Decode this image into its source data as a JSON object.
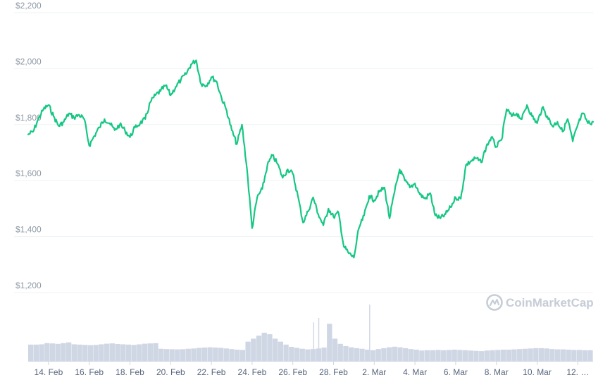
{
  "chart_data": {
    "type": "line",
    "watermark": "CoinMarketCap",
    "colors": {
      "line": "#16c784",
      "volume": "#cfd6e4",
      "grid": "#eff2f5"
    },
    "y_axis": {
      "ticks": [
        "$1,200",
        "$1,400",
        "$1,600",
        "$1,800",
        "$2,000",
        "$2,200"
      ],
      "ylim": [
        1200,
        2200
      ]
    },
    "x_axis": {
      "ticks": [
        "14. Feb",
        "16. Feb",
        "18. Feb",
        "20. Feb",
        "22. Feb",
        "24. Feb",
        "26. Feb",
        "28. Feb",
        "2. Mar",
        "4. Mar",
        "6. Mar",
        "8. Mar",
        "10. Mar",
        "12. …"
      ]
    },
    "grid": true,
    "series": [
      {
        "values": [
          [
            "2021-02-13 00:00",
            1765
          ],
          [
            "2021-02-13 06:00",
            1775
          ],
          [
            "2021-02-13 12:00",
            1820
          ],
          [
            "2021-02-13 18:00",
            1855
          ],
          [
            "2021-02-14 00:00",
            1870
          ],
          [
            "2021-02-14 06:00",
            1830
          ],
          [
            "2021-02-14 12:00",
            1795
          ],
          [
            "2021-02-14 18:00",
            1810
          ],
          [
            "2021-02-15 00:00",
            1840
          ],
          [
            "2021-02-15 06:00",
            1825
          ],
          [
            "2021-02-15 12:00",
            1835
          ],
          [
            "2021-02-15 18:00",
            1820
          ],
          [
            "2021-02-16 00:00",
            1725
          ],
          [
            "2021-02-16 06:00",
            1760
          ],
          [
            "2021-02-16 12:00",
            1790
          ],
          [
            "2021-02-16 18:00",
            1820
          ],
          [
            "2021-02-17 00:00",
            1805
          ],
          [
            "2021-02-17 06:00",
            1780
          ],
          [
            "2021-02-17 12:00",
            1800
          ],
          [
            "2021-02-17 18:00",
            1780
          ],
          [
            "2021-02-18 00:00",
            1755
          ],
          [
            "2021-02-18 06:00",
            1790
          ],
          [
            "2021-02-18 12:00",
            1805
          ],
          [
            "2021-02-18 18:00",
            1820
          ],
          [
            "2021-02-19 00:00",
            1880
          ],
          [
            "2021-02-19 06:00",
            1905
          ],
          [
            "2021-02-19 12:00",
            1920
          ],
          [
            "2021-02-19 18:00",
            1940
          ],
          [
            "2021-02-20 00:00",
            1905
          ],
          [
            "2021-02-20 06:00",
            1935
          ],
          [
            "2021-02-20 12:00",
            1960
          ],
          [
            "2021-02-20 18:00",
            1980
          ],
          [
            "2021-02-21 00:00",
            2015
          ],
          [
            "2021-02-21 06:00",
            2030
          ],
          [
            "2021-02-21 12:00",
            1945
          ],
          [
            "2021-02-21 18:00",
            1940
          ],
          [
            "2021-02-22 00:00",
            1970
          ],
          [
            "2021-02-22 06:00",
            1955
          ],
          [
            "2021-02-22 12:00",
            1895
          ],
          [
            "2021-02-22 18:00",
            1850
          ],
          [
            "2021-02-23 00:00",
            1780
          ],
          [
            "2021-02-23 06:00",
            1730
          ],
          [
            "2021-02-23 12:00",
            1800
          ],
          [
            "2021-02-23 18:00",
            1640
          ],
          [
            "2021-02-24 00:00",
            1430
          ],
          [
            "2021-02-24 06:00",
            1540
          ],
          [
            "2021-02-24 12:00",
            1570
          ],
          [
            "2021-02-24 18:00",
            1655
          ],
          [
            "2021-02-25 00:00",
            1690
          ],
          [
            "2021-02-25 06:00",
            1660
          ],
          [
            "2021-02-25 12:00",
            1610
          ],
          [
            "2021-02-25 18:00",
            1640
          ],
          [
            "2021-02-26 00:00",
            1625
          ],
          [
            "2021-02-26 06:00",
            1545
          ],
          [
            "2021-02-26 12:00",
            1450
          ],
          [
            "2021-02-26 18:00",
            1490
          ],
          [
            "2021-02-27 00:00",
            1540
          ],
          [
            "2021-02-27 06:00",
            1480
          ],
          [
            "2021-02-27 12:00",
            1440
          ],
          [
            "2021-02-27 18:00",
            1500
          ],
          [
            "2021-02-28 00:00",
            1470
          ],
          [
            "2021-02-28 06:00",
            1485
          ],
          [
            "2021-02-28 12:00",
            1365
          ],
          [
            "2021-02-28 18:00",
            1340
          ],
          [
            "2021-03-01 00:00",
            1325
          ],
          [
            "2021-03-01 06:00",
            1430
          ],
          [
            "2021-03-01 12:00",
            1475
          ],
          [
            "2021-03-01 18:00",
            1545
          ],
          [
            "2021-03-02 00:00",
            1530
          ],
          [
            "2021-03-02 06:00",
            1560
          ],
          [
            "2021-03-02 12:00",
            1575
          ],
          [
            "2021-03-02 18:00",
            1465
          ],
          [
            "2021-03-03 00:00",
            1560
          ],
          [
            "2021-03-03 06:00",
            1640
          ],
          [
            "2021-03-03 12:00",
            1600
          ],
          [
            "2021-03-03 18:00",
            1575
          ],
          [
            "2021-03-04 00:00",
            1590
          ],
          [
            "2021-03-04 06:00",
            1550
          ],
          [
            "2021-03-04 12:00",
            1535
          ],
          [
            "2021-03-04 18:00",
            1555
          ],
          [
            "2021-03-05 00:00",
            1475
          ],
          [
            "2021-03-05 06:00",
            1465
          ],
          [
            "2021-03-05 12:00",
            1480
          ],
          [
            "2021-03-05 18:00",
            1505
          ],
          [
            "2021-03-06 00:00",
            1540
          ],
          [
            "2021-03-06 06:00",
            1535
          ],
          [
            "2021-03-06 12:00",
            1655
          ],
          [
            "2021-03-06 18:00",
            1670
          ],
          [
            "2021-03-07 00:00",
            1680
          ],
          [
            "2021-03-07 06:00",
            1665
          ],
          [
            "2021-03-07 12:00",
            1720
          ],
          [
            "2021-03-07 18:00",
            1755
          ],
          [
            "2021-03-08 00:00",
            1720
          ],
          [
            "2021-03-08 06:00",
            1745
          ],
          [
            "2021-03-08 12:00",
            1855
          ],
          [
            "2021-03-08 18:00",
            1830
          ],
          [
            "2021-03-09 00:00",
            1840
          ],
          [
            "2021-03-09 06:00",
            1820
          ],
          [
            "2021-03-09 12:00",
            1870
          ],
          [
            "2021-03-09 18:00",
            1830
          ],
          [
            "2021-03-10 00:00",
            1805
          ],
          [
            "2021-03-10 06:00",
            1860
          ],
          [
            "2021-03-10 12:00",
            1830
          ],
          [
            "2021-03-10 18:00",
            1795
          ],
          [
            "2021-03-11 00:00",
            1810
          ],
          [
            "2021-03-11 06:00",
            1775
          ],
          [
            "2021-03-11 12:00",
            1820
          ],
          [
            "2021-03-11 18:00",
            1740
          ],
          [
            "2021-03-12 00:00",
            1800
          ],
          [
            "2021-03-12 06:00",
            1840
          ],
          [
            "2021-03-12 12:00",
            1805
          ],
          [
            "2021-03-12 18:00",
            1810
          ]
        ]
      }
    ],
    "volume": [
      110,
      110,
      112,
      120,
      118,
      115,
      120,
      125,
      112,
      110,
      108,
      106,
      108,
      112,
      116,
      118,
      114,
      112,
      110,
      108,
      112,
      116,
      118,
      120,
      82,
      80,
      79,
      78,
      79,
      82,
      84,
      88,
      90,
      92,
      90,
      88,
      84,
      80,
      76,
      74,
      130,
      150,
      170,
      190,
      180,
      150,
      130,
      110,
      95,
      88,
      82,
      78,
      80,
      84,
      90,
      250,
      150,
      115,
      100,
      92,
      86,
      82,
      76,
      72,
      80,
      86,
      92,
      96,
      92,
      86,
      80,
      76,
      70,
      72,
      72,
      74,
      72,
      74,
      76,
      74,
      72,
      70,
      68,
      66,
      70,
      72,
      74,
      76,
      76,
      78,
      80,
      82,
      84,
      86,
      86,
      84,
      80,
      78,
      78,
      76,
      74,
      74,
      72,
      72
    ],
    "volume_spikes": [
      [
        "2021-02-27 00:00",
        260
      ],
      [
        "2021-02-27 06:00",
        290
      ],
      [
        "2021-03-01 18:00",
        380
      ]
    ]
  }
}
